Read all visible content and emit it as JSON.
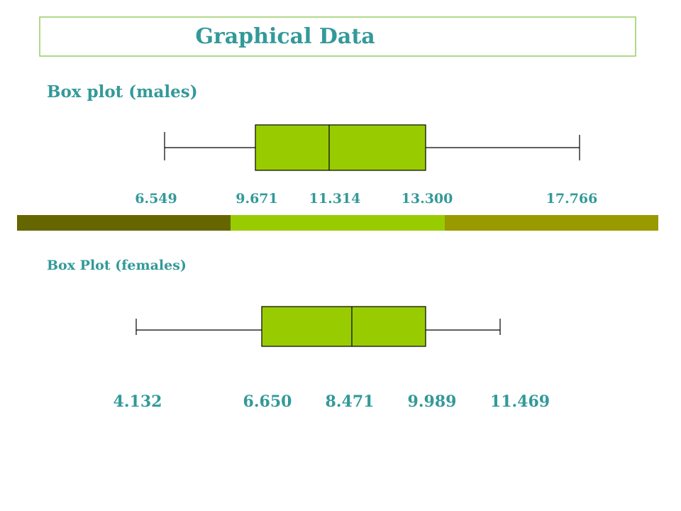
{
  "header": {
    "title": "Graphical Data"
  },
  "males": {
    "label": "Box plot (males)",
    "values": [
      "6.549",
      "9.671",
      "11.314",
      "13.300",
      "17.766"
    ]
  },
  "females": {
    "label": "Box Plot (females)",
    "values": [
      "4.132",
      "6.650",
      "8.471",
      "9.989",
      "11.469"
    ]
  }
}
